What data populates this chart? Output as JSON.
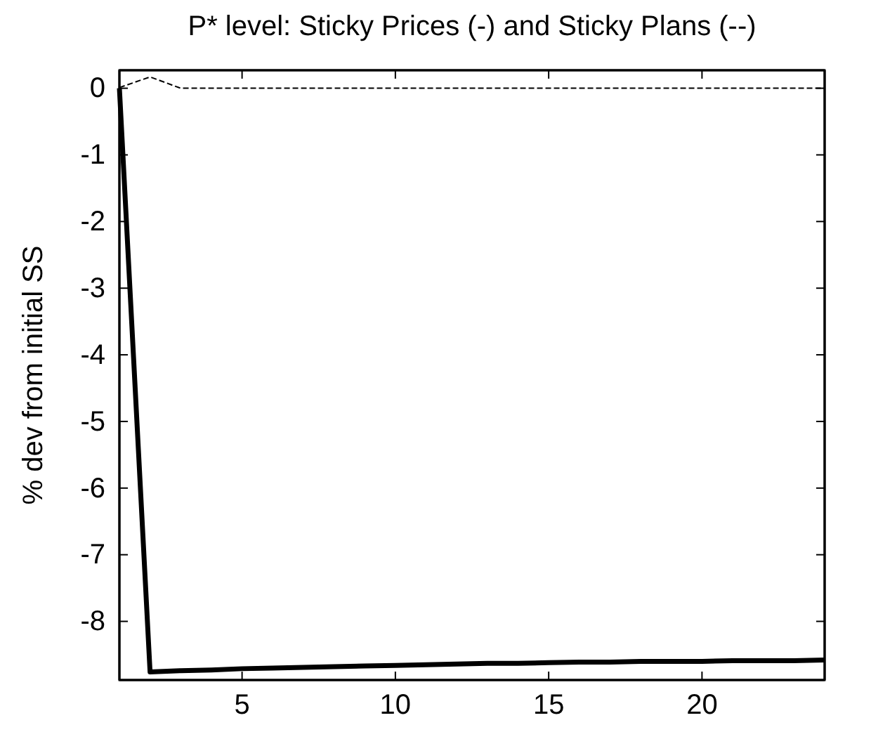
{
  "chart_data": {
    "type": "line",
    "title": "P* level: Sticky Prices (-) and Sticky Plans (--)",
    "ylabel": "% dev from initial SS",
    "x": [
      1,
      2,
      3,
      4,
      5,
      6,
      7,
      8,
      9,
      10,
      11,
      12,
      13,
      14,
      15,
      16,
      17,
      18,
      19,
      20,
      21,
      22,
      23,
      24
    ],
    "series": [
      {
        "color": "#000000",
        "line_style": "solid",
        "values": [
          0,
          -8.76,
          -8.74,
          -8.73,
          -8.71,
          -8.7,
          -8.69,
          -8.68,
          -8.67,
          -8.66,
          -8.65,
          -8.64,
          -8.63,
          -8.63,
          -8.62,
          -8.61,
          -8.61,
          -8.6,
          -8.6,
          -8.6,
          -8.59,
          -8.59,
          -8.59,
          -8.58
        ]
      },
      {
        "color": "#000000",
        "line_style": "dashed",
        "values": [
          0.01,
          0.17,
          0,
          0,
          0,
          0,
          0,
          0,
          0,
          0,
          0,
          0,
          0,
          0,
          0,
          0,
          0,
          0,
          0,
          0,
          0,
          0,
          0,
          0
        ]
      }
    ],
    "xlim": [
      1,
      24
    ],
    "ylim": [
      -8.88,
      0.27
    ],
    "xticks": [
      5,
      10,
      15,
      20
    ],
    "yticks": [
      -8,
      -7,
      -6,
      -5,
      -4,
      -3,
      -2,
      -1,
      0
    ],
    "marker": "none"
  }
}
